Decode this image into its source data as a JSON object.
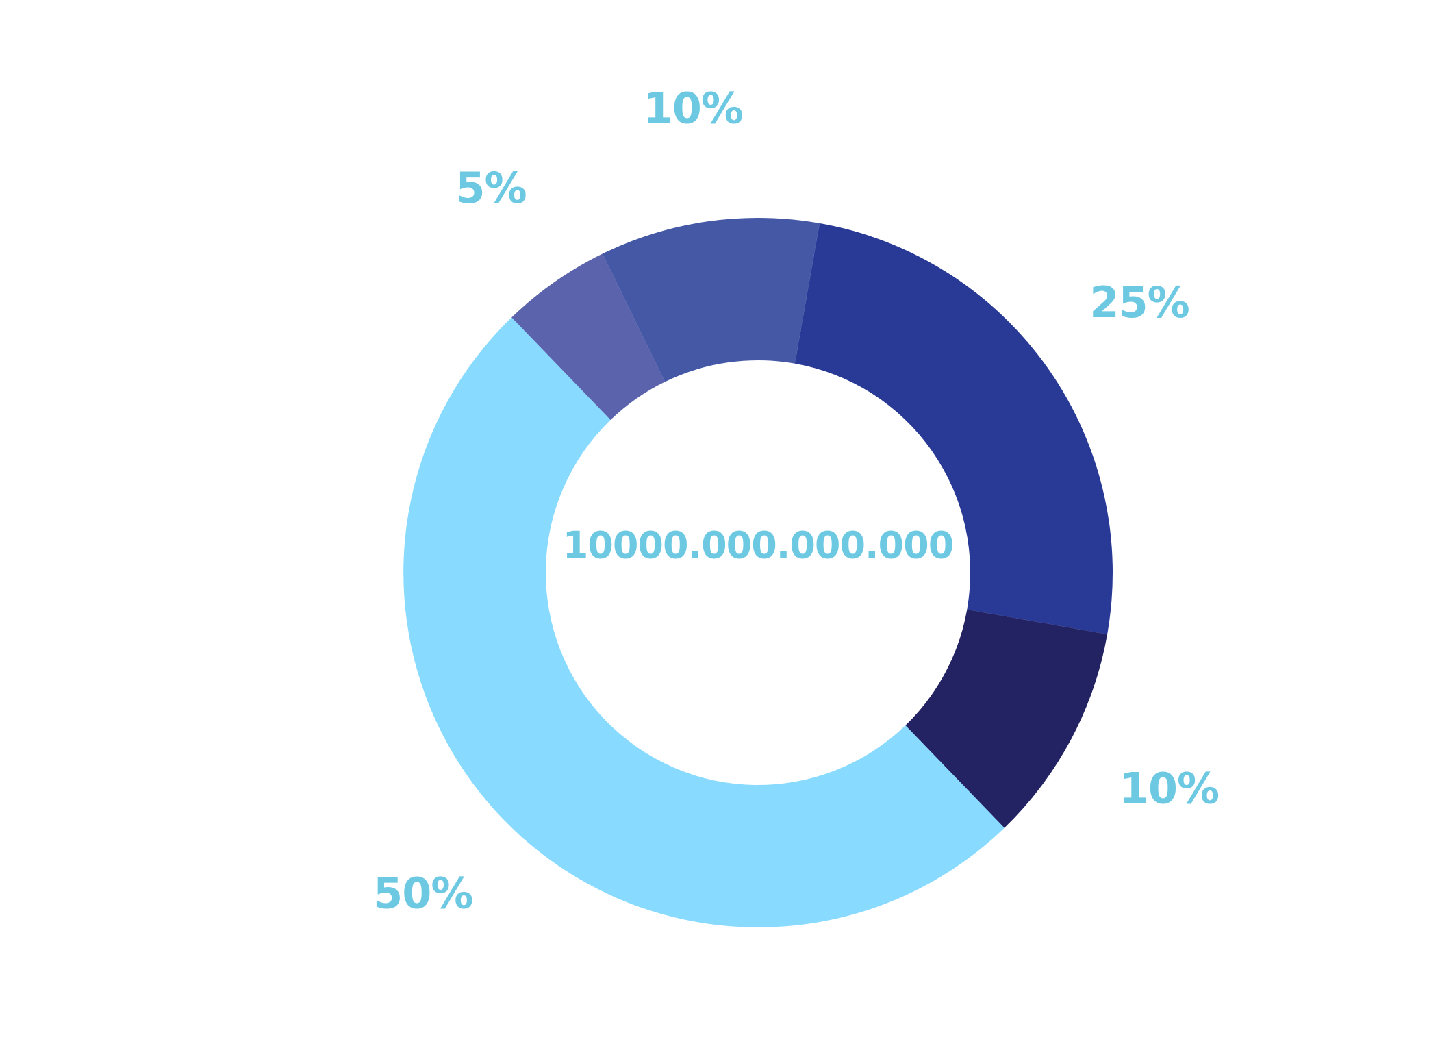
{
  "chart_data": {
    "type": "pie",
    "donut": true,
    "center_text": "10000.000.000.000",
    "slices": [
      {
        "label": "25%",
        "value": 25,
        "color": "#293A96"
      },
      {
        "label": "10%",
        "value": 10,
        "color": "#232262"
      },
      {
        "label": "50%",
        "value": 50,
        "color": "#88DAFF"
      },
      {
        "label": "5%",
        "value": 5,
        "color": "#5B63AD"
      },
      {
        "label": "10%",
        "value": 10,
        "color": "#4458A6"
      }
    ],
    "label_color": "#6DC9E2",
    "legend": "none"
  }
}
